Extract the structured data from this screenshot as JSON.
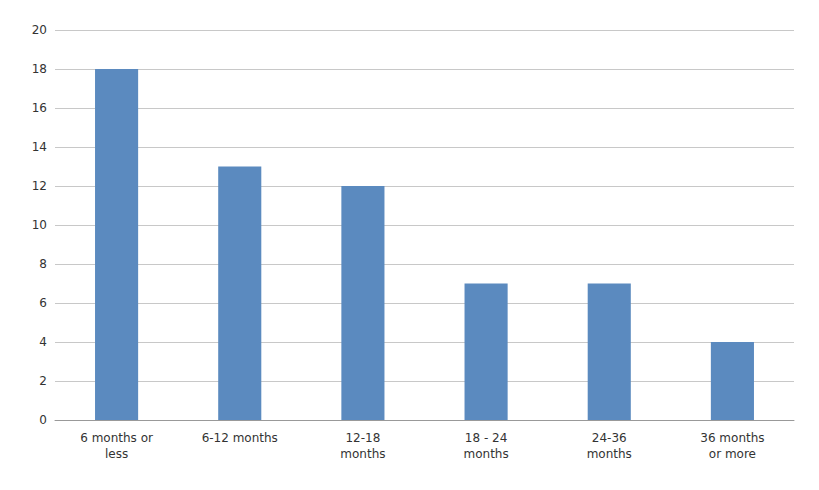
{
  "chart_data": {
    "type": "bar",
    "categories": [
      "6 months or\nless",
      "6-12 months",
      "12-18\nmonths",
      "18 - 24\nmonths",
      "24-36\nmonths",
      "36 months\nor more"
    ],
    "values": [
      18,
      13,
      12,
      7,
      7,
      4
    ],
    "color": "#5b8abf",
    "ylim": [
      0,
      20
    ],
    "yticks": [
      0,
      2,
      4,
      6,
      8,
      10,
      12,
      14,
      16,
      18,
      20
    ],
    "grid": true
  }
}
